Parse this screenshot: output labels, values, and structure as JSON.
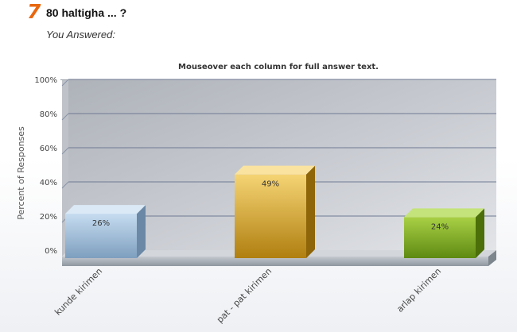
{
  "question": {
    "number": "7",
    "text": "80 haltigha ... ?",
    "you_answered": "You Answered:"
  },
  "chart_data": {
    "type": "bar",
    "title": "Mouseover each column for full answer text.",
    "ylabel": "Percent of Responses",
    "xlabel": "",
    "categories": [
      "kunde kirimen",
      "pat - pat kirimen",
      "arlap kirimen"
    ],
    "values": [
      26,
      49,
      24
    ],
    "value_labels": [
      "26%",
      "49%",
      "24%"
    ],
    "yticks": [
      "0%",
      "20%",
      "40%",
      "60%",
      "80%",
      "100%"
    ],
    "ylim": [
      0,
      100
    ],
    "grid": true,
    "colors": [
      "#a9c6e0",
      "#e3b13c",
      "#8fba2e"
    ]
  }
}
